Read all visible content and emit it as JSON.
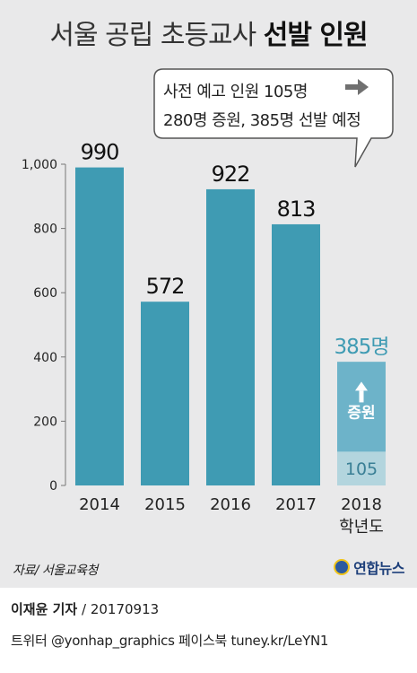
{
  "title": {
    "light": "서울 공립 초등교사 ",
    "bold": "선발 인원"
  },
  "callout": {
    "line1": "사전 예고 인원 105명",
    "line2": "280명 증원, 385명 선발 예정"
  },
  "chart_data": {
    "type": "bar",
    "categories": [
      "2014",
      "2015",
      "2016",
      "2017",
      "2018"
    ],
    "category_sublabels": [
      "",
      "",
      "",
      "",
      "학년도"
    ],
    "values": [
      990,
      572,
      922,
      813,
      385
    ],
    "value_labels": [
      "990",
      "572",
      "922",
      "813",
      "385명"
    ],
    "last_bar_breakdown": {
      "base_value": 105,
      "base_label": "105",
      "increase_value": 280,
      "increase_label": "증원"
    },
    "ylim": [
      0,
      1000
    ],
    "yticks": [
      0,
      200,
      400,
      600,
      800,
      1000
    ],
    "ytick_labels": [
      "0",
      "200",
      "400",
      "600",
      "800",
      "1,000"
    ],
    "title": "서울 공립 초등교사 선발 인원",
    "xlabel": "",
    "ylabel": "",
    "grid": false,
    "colors": {
      "bar": "#3f9bb3",
      "highlight_increase": "#6db3c9",
      "highlight_base": "#b3d5de",
      "highlight_label": "#3f9bb3",
      "background": "#e9e9ea"
    }
  },
  "source": "자료/ 서울교육청",
  "logo": {
    "text": "연합뉴스",
    "icon": "yonhap-logo-icon"
  },
  "byline": {
    "name": "이재윤 기자",
    "date": " / 20170913"
  },
  "social": "트위터 @yonhap_graphics 페이스북 tuney.kr/LeYN1"
}
